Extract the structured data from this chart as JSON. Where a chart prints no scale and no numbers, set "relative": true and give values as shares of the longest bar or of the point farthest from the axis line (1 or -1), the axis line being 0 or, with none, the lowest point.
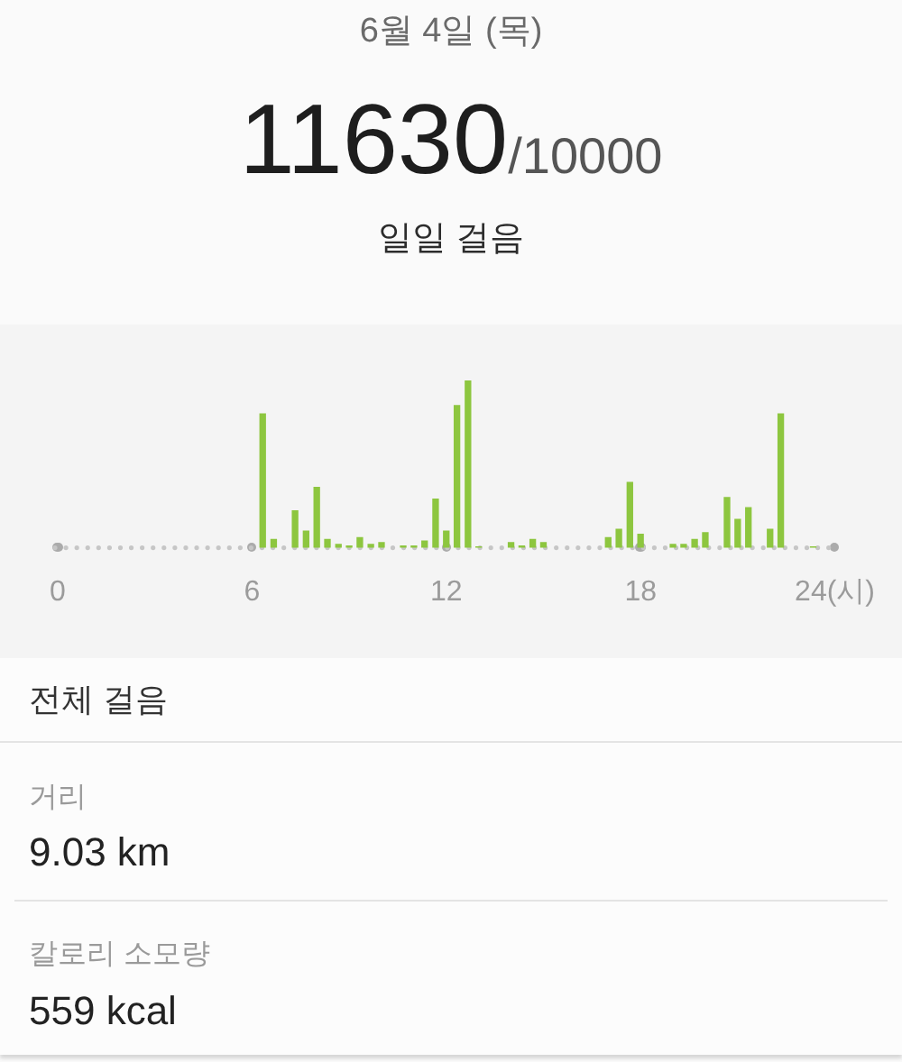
{
  "chart_data": {
    "type": "bar",
    "title": "6월 4일 (목)",
    "subtitle": "일일 걸음",
    "annotations": [
      "11630",
      "/10000",
      "전체 걸음",
      "거리",
      "9.03 km",
      "칼로리 소모량",
      "559 kcal"
    ],
    "relative": true,
    "color": "#8dc63f",
    "x": [
      6.33,
      6.67,
      7.33,
      7.67,
      8,
      8.33,
      8.67,
      9,
      9.33,
      9.67,
      10,
      10.67,
      11,
      11.33,
      11.67,
      12,
      12.33,
      12.67,
      13,
      14,
      14.33,
      14.67,
      15,
      17,
      17.33,
      17.67,
      18,
      19,
      19.33,
      19.67,
      20,
      20.67,
      21,
      21.33,
      22,
      22.33,
      23.33
    ],
    "values": [
      0.8,
      0.05,
      0.22,
      0.1,
      0.36,
      0.05,
      0.02,
      0.01,
      0.06,
      0.02,
      0.03,
      0.01,
      0.01,
      0.04,
      0.29,
      0.1,
      0.85,
      1,
      0.005,
      0.03,
      0.01,
      0.05,
      0.03,
      0.06,
      0.11,
      0.39,
      0.08,
      0.02,
      0.02,
      0.05,
      0.09,
      0.3,
      0.17,
      0.24,
      0.11,
      0.8,
      0.005
    ],
    "xlim": [
      0,
      24
    ],
    "xticks": [
      0,
      6,
      12,
      18,
      {
        "value": 24,
        "label": "24(시)"
      }
    ]
  }
}
